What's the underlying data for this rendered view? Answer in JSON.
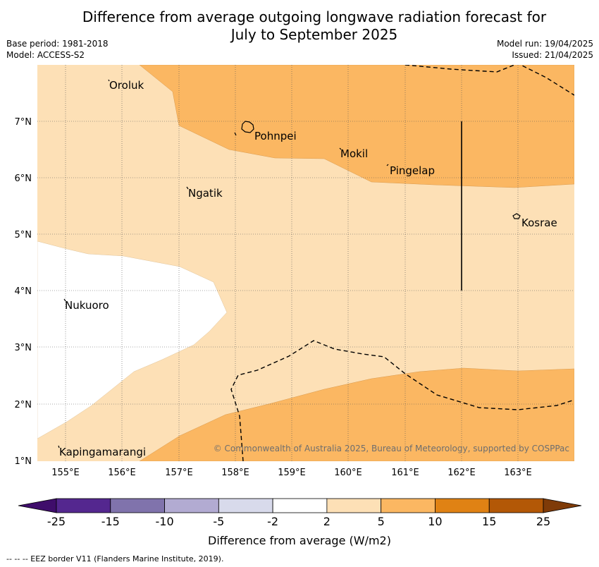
{
  "title_line1": "Difference from average outgoing longwave radiation forecast for",
  "title_line2": "July to September 2025",
  "base_period": "Base period: 1981-2018",
  "model": "Model: ACCESS-S2",
  "model_run": "Model run: 19/04/2025",
  "issued": "Issued: 21/04/2025",
  "lat_ticks": [
    "7°N",
    "6°N",
    "5°N",
    "4°N",
    "3°N",
    "2°N",
    "1°N"
  ],
  "lon_ticks": [
    "155°E",
    "156°E",
    "157°E",
    "158°E",
    "159°E",
    "160°E",
    "161°E",
    "162°E",
    "163°E"
  ],
  "places": {
    "oroluk": "Oroluk",
    "pohnpei": "Pohnpei",
    "mokil": "Mokil",
    "pingelap": "Pingelap",
    "ngatik": "Ngatik",
    "kosrae": "Kosrae",
    "nukuoro": "Nukuoro",
    "kapingamarangi": "Kapingamarangi"
  },
  "credit": "© Commonwealth of Australia 2025, Bureau of Meteorology, supported by COSPPac",
  "colorbar": {
    "labels": [
      "-25",
      "-15",
      "-10",
      "-5",
      "-2",
      "2",
      "5",
      "10",
      "15",
      "25"
    ],
    "colors": [
      "#3f0d6b",
      "#54278f",
      "#8073ac",
      "#b2abd2",
      "#d8daeb",
      "#ffffff",
      "#fde0b6",
      "#fbb762",
      "#e08214",
      "#b35806",
      "#7f3b08"
    ],
    "title": "Difference from average (W/m2)"
  },
  "footnote": "-- -- -- EEZ border V11 (Flanders Marine Institute, 2019)."
}
